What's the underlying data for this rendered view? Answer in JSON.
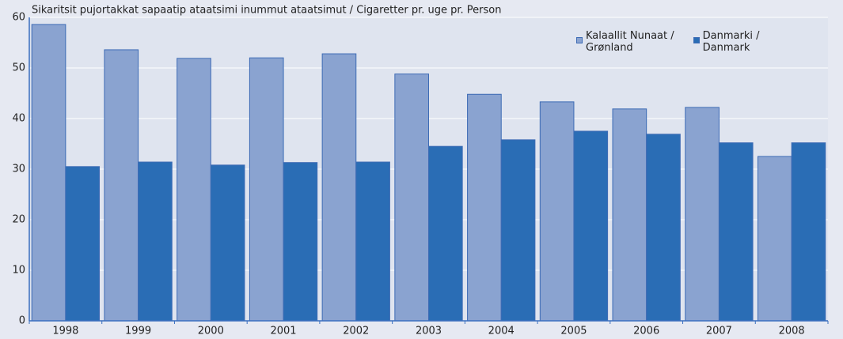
{
  "chart_data": {
    "type": "bar",
    "title": "Sikaritsit pujortakkat sapaatip ataatsimi inummut ataatsimut / Cigaretter pr. uge pr. Person",
    "categories": [
      "1998",
      "1999",
      "2000",
      "2001",
      "2002",
      "2003",
      "2004",
      "2005",
      "2006",
      "2007",
      "2008"
    ],
    "series": [
      {
        "name": "Kalaallit Nunaat /\nGrønland",
        "color": "#8aa3d0",
        "values": [
          58.6,
          53.6,
          51.9,
          52.0,
          52.8,
          48.8,
          44.8,
          43.3,
          41.9,
          42.2,
          32.5
        ]
      },
      {
        "name": "Danmarki /\nDanmark",
        "color": "#2a6db5",
        "values": [
          30.5,
          31.4,
          30.8,
          31.3,
          31.4,
          34.5,
          35.8,
          37.5,
          36.9,
          35.2,
          35.2
        ]
      }
    ],
    "ylim": [
      0,
      60
    ],
    "yticks": [
      0,
      10,
      20,
      30,
      40,
      50,
      60
    ],
    "grid": true,
    "legend": "upper right"
  }
}
